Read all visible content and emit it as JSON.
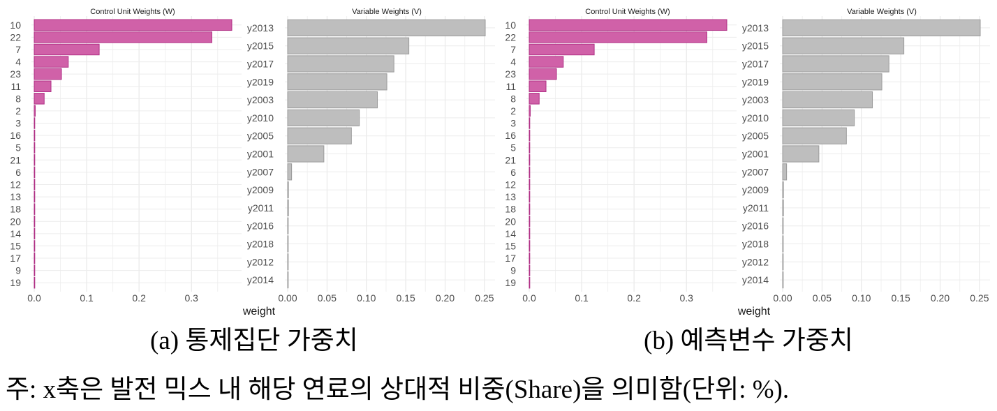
{
  "chart_data": [
    {
      "type": "bar",
      "orientation": "horizontal",
      "title": "Control Unit Weights (W)",
      "xlabel": "weight",
      "categories": [
        "10",
        "22",
        "7",
        "4",
        "23",
        "11",
        "8",
        "2",
        "3",
        "16",
        "5",
        "21",
        "6",
        "12",
        "13",
        "18",
        "20",
        "14",
        "15",
        "17",
        "9",
        "19"
      ],
      "values": [
        0.377,
        0.339,
        0.124,
        0.065,
        0.052,
        0.032,
        0.019,
        0.002,
        0.001,
        0.001,
        0.001,
        0.001,
        0.001,
        0.001,
        0.001,
        0.001,
        0.001,
        0.001,
        0.001,
        0.001,
        0.001,
        0.001
      ],
      "xlim": [
        0,
        0.377
      ],
      "xticks": [
        0,
        0.1,
        0.2,
        0.3
      ],
      "xtick_labels": [
        "0.0",
        "0.1",
        "0.2",
        "0.3"
      ],
      "color": "#d061a8",
      "edge_color": "#b02f85",
      "grid": true
    },
    {
      "type": "bar",
      "orientation": "horizontal",
      "title": "Variable Weights (V)",
      "xlabel": "",
      "categories": [
        "y2013",
        "y2015",
        "y2017",
        "y2019",
        "y2003",
        "y2010",
        "y2005",
        "y2001",
        "y2007",
        "y2009",
        "y2011",
        "y2016",
        "y2018",
        "y2012",
        "y2014"
      ],
      "values": [
        0.251,
        0.154,
        0.135,
        0.126,
        0.114,
        0.091,
        0.081,
        0.046,
        0.005,
        0.001,
        0.001,
        0.0005,
        0.0005,
        0.0005,
        0.0005
      ],
      "xlim": [
        0,
        0.251
      ],
      "xticks": [
        0,
        0.05,
        0.1,
        0.15,
        0.2,
        0.25
      ],
      "xtick_labels": [
        "0.00",
        "0.05",
        "0.10",
        "0.15",
        "0.20",
        "0.25"
      ],
      "color": "#bebebe",
      "edge_color": "#9a9a9a",
      "grid": true
    }
  ],
  "captions": {
    "a": "(a) 통제집단 가중치",
    "b": "(b) 예측변수 가중치"
  },
  "note": "주: x축은 발전 믹스 내 해당 연료의 상대적 비중(Share)을 의미함(단위: %)."
}
